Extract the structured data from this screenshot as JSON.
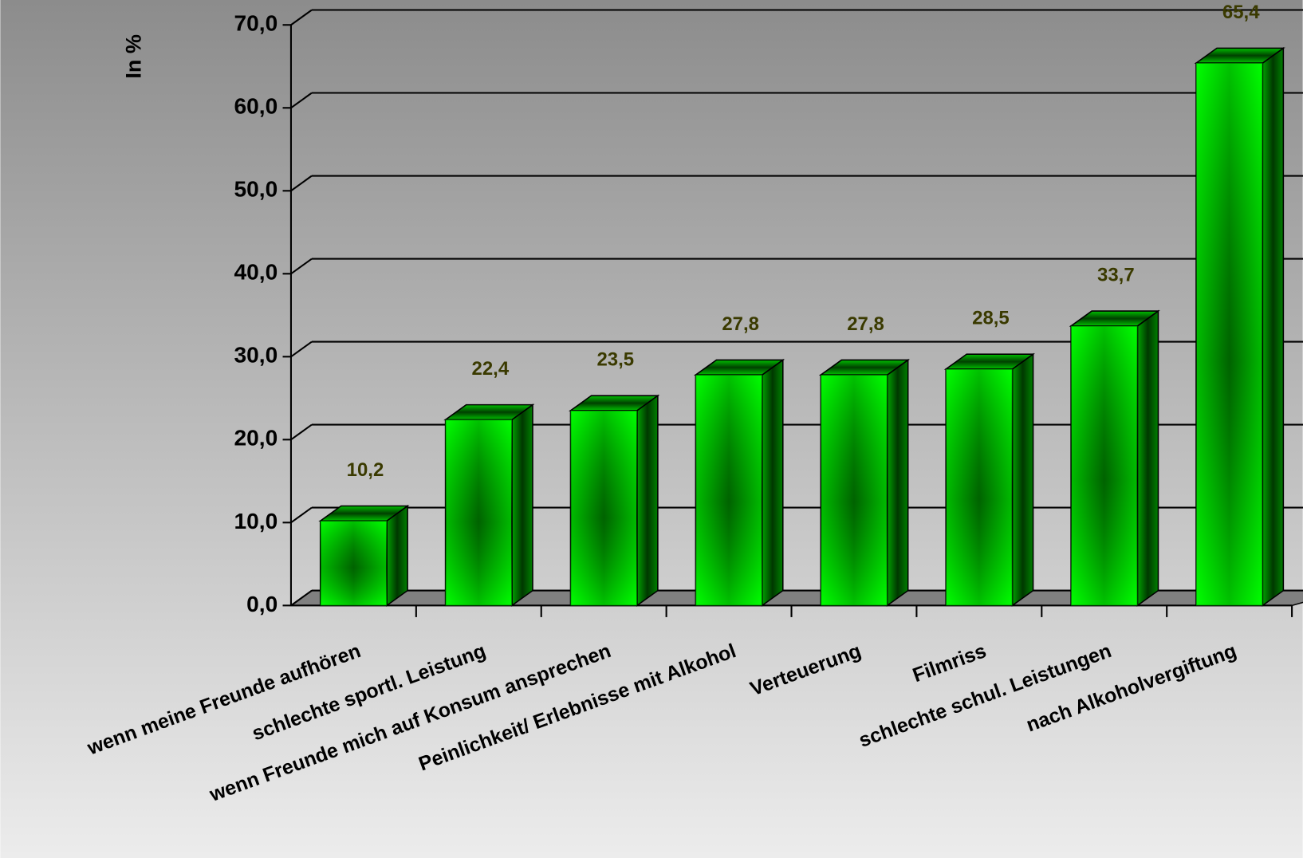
{
  "chart_data": {
    "type": "bar",
    "y_label": "In %",
    "categories": [
      "wenn meine Freunde aufhören",
      "schlechte sportl. Leistung",
      "wenn Freunde mich auf Konsum ansprechen",
      "Peinlichkeit/ Erlebnisse mit Alkohol",
      "Verteuerung",
      "Filmriss",
      "schlechte schul. Leistungen",
      "nach Alkoholvergiftung"
    ],
    "values": [
      10.2,
      22.4,
      23.5,
      27.8,
      27.8,
      28.5,
      33.7,
      65.4
    ],
    "value_labels": [
      "10,2",
      "22,4",
      "23,5",
      "27,8",
      "27,8",
      "28,5",
      "33,7",
      "65,4"
    ],
    "color": "#00ff00",
    "ylim": [
      0,
      70
    ],
    "yticks": [
      {
        "value": 0,
        "label": "0,0"
      },
      {
        "value": 10,
        "label": "10,0"
      },
      {
        "value": 20,
        "label": "20,0"
      },
      {
        "value": 30,
        "label": "30,0"
      },
      {
        "value": 40,
        "label": "40,0"
      },
      {
        "value": 50,
        "label": "50,0"
      },
      {
        "value": 60,
        "label": "60,0"
      },
      {
        "value": 70,
        "label": "70,0"
      }
    ],
    "grid": true
  }
}
